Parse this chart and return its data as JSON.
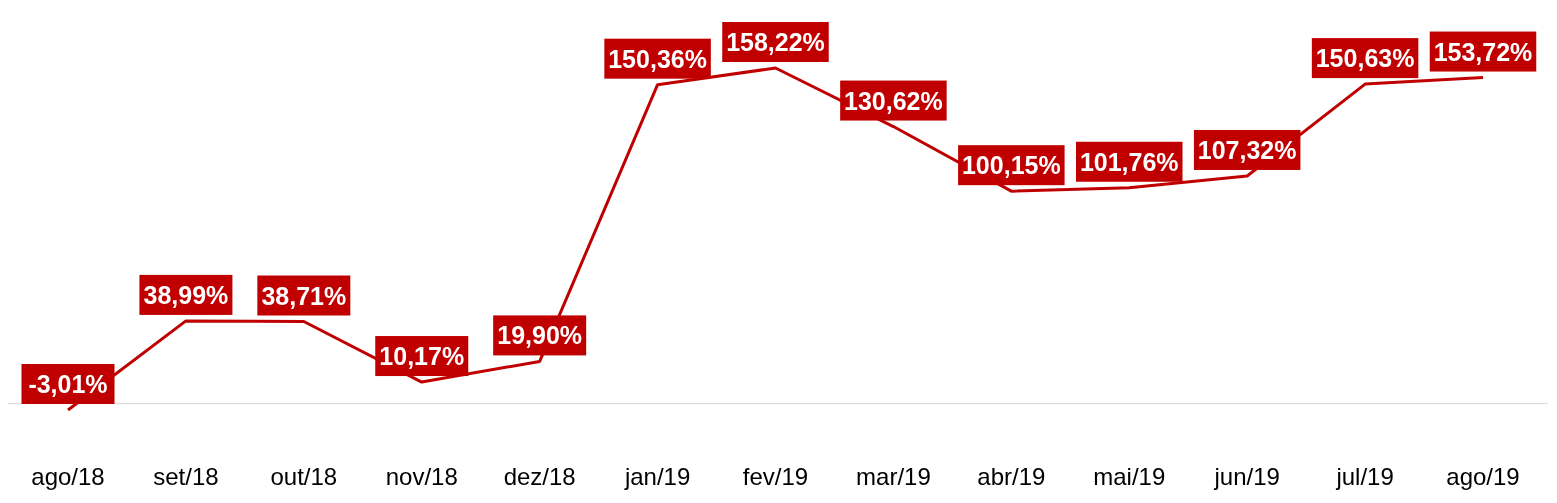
{
  "chart_data": {
    "type": "line",
    "relative": false,
    "categories": [
      "ago/18",
      "set/18",
      "out/18",
      "nov/18",
      "dez/18",
      "jan/19",
      "fev/19",
      "mar/19",
      "abr/19",
      "mai/19",
      "jun/19",
      "jul/19",
      "ago/19"
    ],
    "series": [
      {
        "color": "#c00000",
        "values": [
          -3.01,
          38.99,
          38.71,
          10.17,
          19.9,
          150.36,
          158.22,
          130.62,
          100.15,
          101.76,
          107.32,
          150.63,
          153.72
        ],
        "value_labels": [
          "-3,01%",
          "38,99%",
          "38,71%",
          "10,17%",
          "19,90%",
          "150,36%",
          "158,22%",
          "130,62%",
          "100,15%",
          "101,76%",
          "107,32%",
          "150,63%",
          "153,72%"
        ]
      }
    ],
    "line_style": "solid",
    "tick_labels": "x"
  }
}
